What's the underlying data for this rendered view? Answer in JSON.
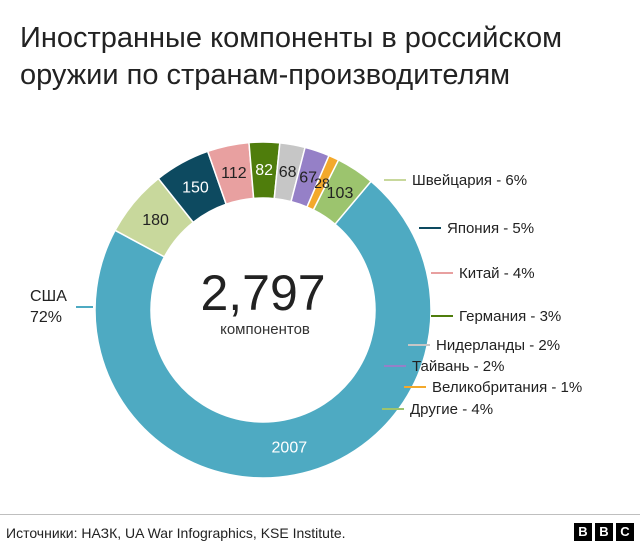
{
  "title_lines": [
    "Иностранные компоненты в российском",
    "оружии по странам-производителям"
  ],
  "source": "Источники: НАЗК, UA War Infographics, KSE Institute.",
  "brand": {
    "letters": [
      "B",
      "B",
      "C"
    ]
  },
  "chart_data": {
    "type": "pie",
    "donut": true,
    "center": {
      "value": "2,797",
      "label": "компонентов"
    },
    "slices": [
      {
        "name": "США",
        "value": 2007,
        "percent_label": "72%",
        "color": "#4eaaC2"
      },
      {
        "name": "Швейцария",
        "value": 180,
        "percent_label": "6%",
        "color": "#c8d89c"
      },
      {
        "name": "Япония",
        "value": 150,
        "percent_label": "5%",
        "color": "#0d4a60"
      },
      {
        "name": "Китай",
        "value": 112,
        "percent_label": "4%",
        "color": "#e8a0a0"
      },
      {
        "name": "Германия",
        "value": 82,
        "percent_label": "3%",
        "color": "#4f7d0c"
      },
      {
        "name": "Нидерланды",
        "value": 68,
        "percent_label": "2%",
        "color": "#c6c6c6"
      },
      {
        "name": "Тайвань",
        "value": 67,
        "percent_label": "2%",
        "color": "#9580c7"
      },
      {
        "name": "Великобритания",
        "value": 28,
        "percent_label": "1%",
        "color": "#f3a92c"
      },
      {
        "name": "Другие",
        "value": 103,
        "percent_label": "4%",
        "color": "#9cc46e"
      }
    ]
  }
}
